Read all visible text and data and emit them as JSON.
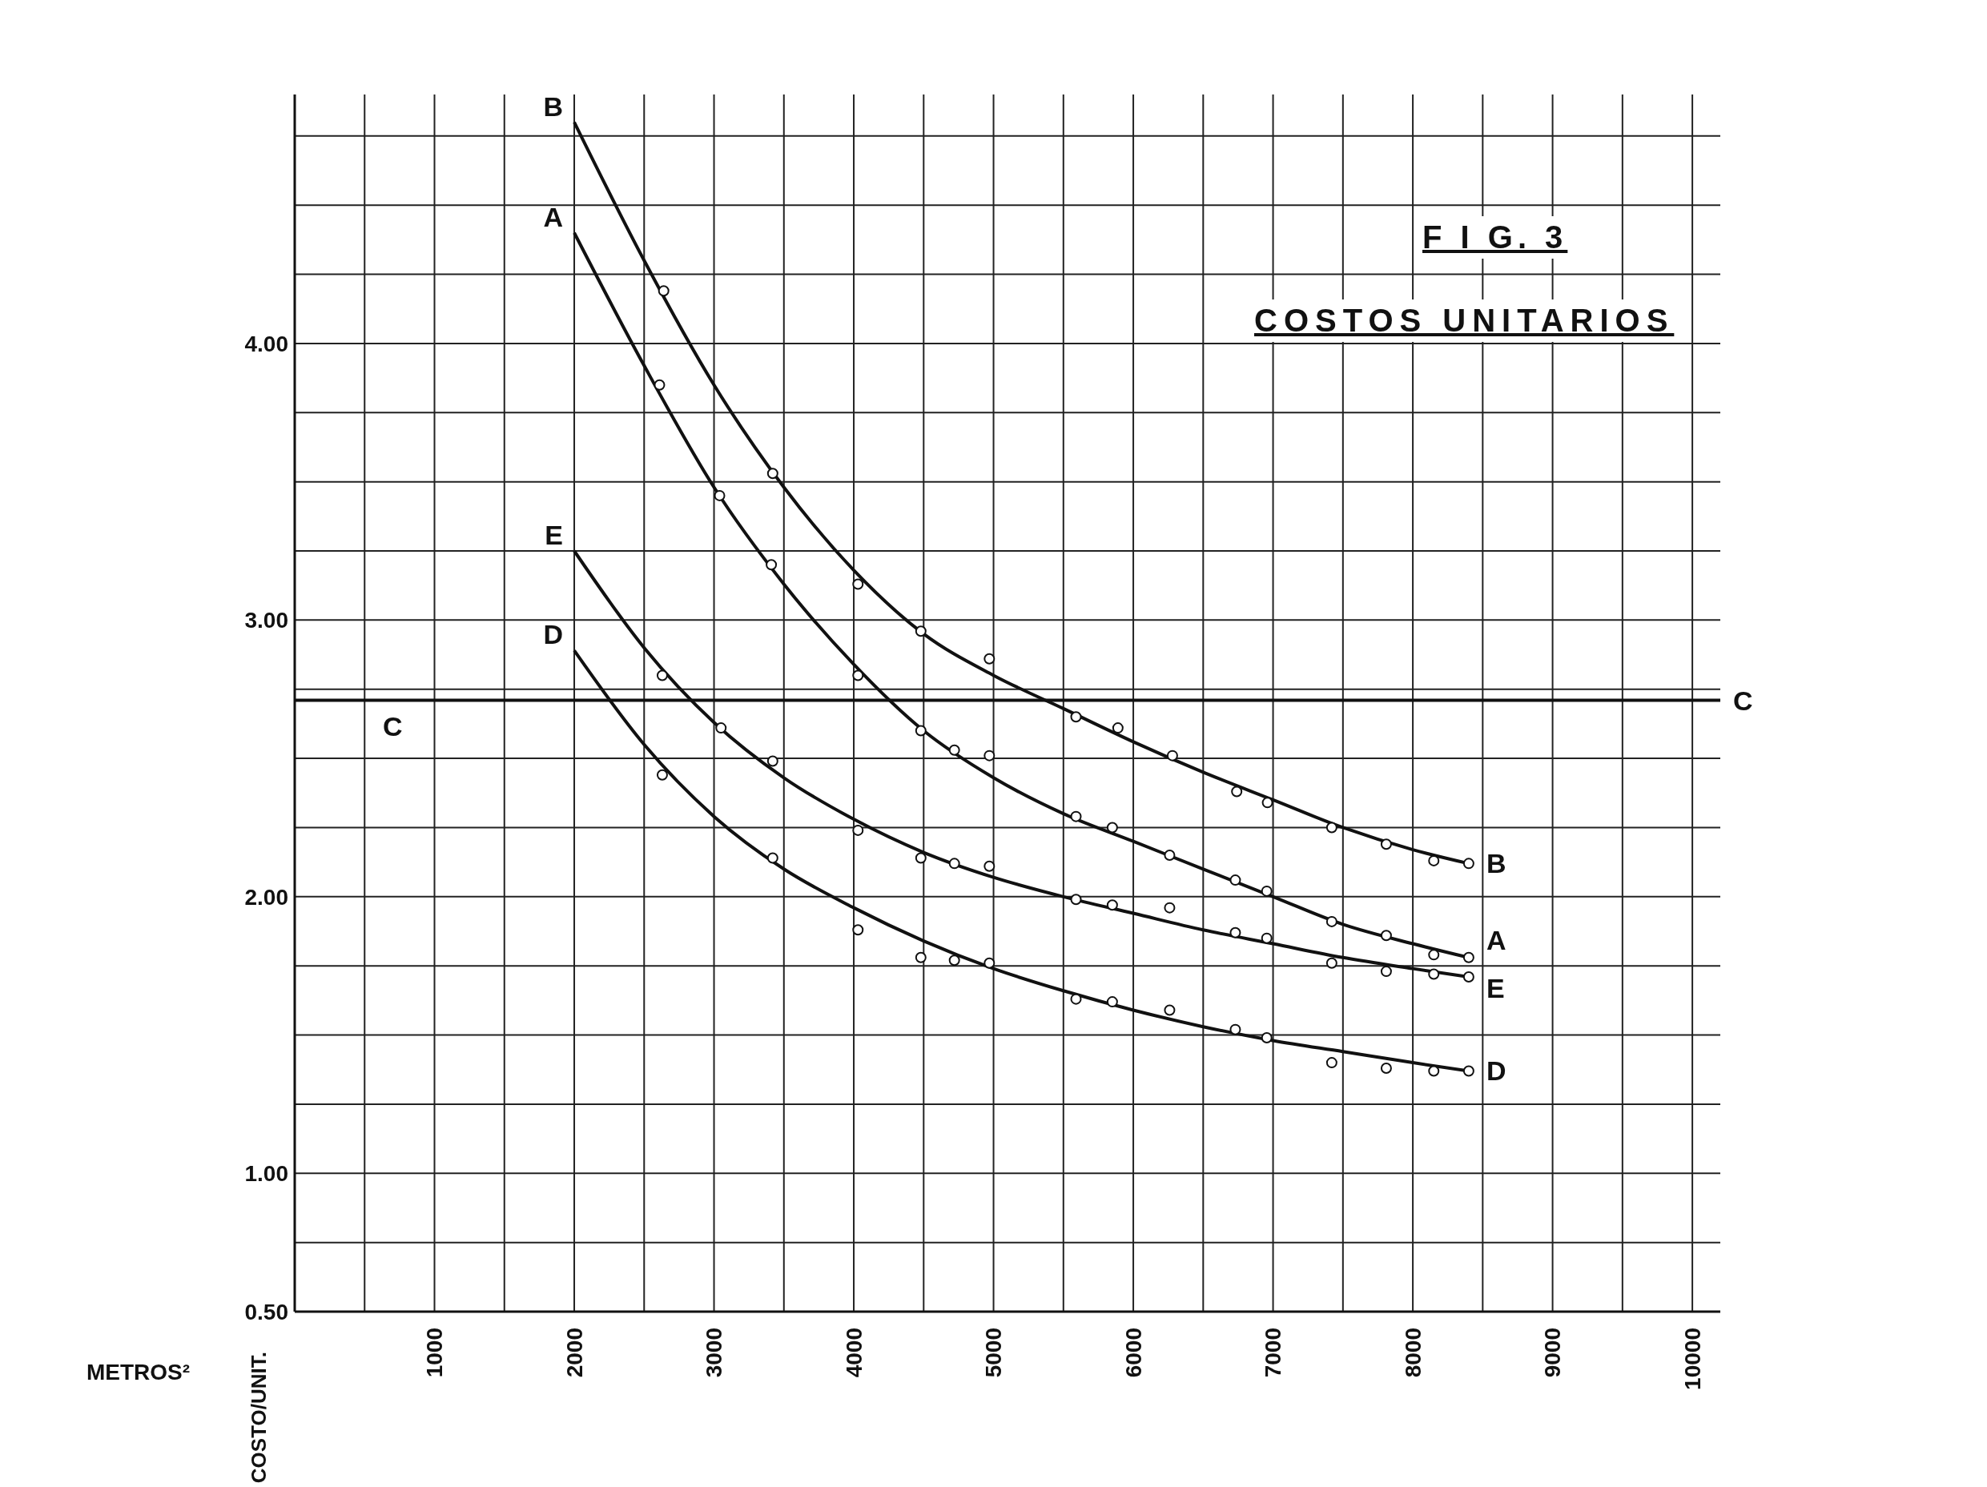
{
  "chart_data": {
    "type": "line",
    "title": "F I G. 3",
    "subtitle": "COSTOS UNITARIOS",
    "xlim": [
      0,
      10200
    ],
    "ylim": [
      0.5,
      4.9
    ],
    "xticks": [
      {
        "value": 0,
        "label": null
      },
      {
        "value": 500,
        "label": null
      },
      1000,
      {
        "value": 1500,
        "label": null
      },
      2000,
      {
        "value": 2500,
        "label": null
      },
      3000,
      {
        "value": 3500,
        "label": null
      },
      4000,
      {
        "value": 4500,
        "label": null
      },
      5000,
      {
        "value": 5500,
        "label": null
      },
      6000,
      {
        "value": 6500,
        "label": null
      },
      7000,
      {
        "value": 7500,
        "label": null
      },
      8000,
      {
        "value": 8500,
        "label": null
      },
      9000,
      {
        "value": 9500,
        "label": null
      },
      10000
    ],
    "yticks": [
      {
        "value": 0.5,
        "label": "0.50"
      },
      {
        "value": 0.75,
        "label": null
      },
      {
        "value": 1,
        "label": "1.00"
      },
      {
        "value": 1.25,
        "label": null
      },
      {
        "value": 1.5,
        "label": null
      },
      {
        "value": 1.75,
        "label": null
      },
      {
        "value": 2,
        "label": "2.00"
      },
      {
        "value": 2.25,
        "label": null
      },
      {
        "value": 2.5,
        "label": null
      },
      {
        "value": 2.75,
        "label": null
      },
      {
        "value": 3,
        "label": "3.00"
      },
      {
        "value": 3.25,
        "label": null
      },
      {
        "value": 3.5,
        "label": null
      },
      {
        "value": 3.75,
        "label": null
      },
      {
        "value": 4,
        "label": "4.00"
      },
      {
        "value": 4.25,
        "label": null
      },
      {
        "value": 4.5,
        "label": null
      },
      {
        "value": 4.75,
        "label": null
      }
    ],
    "grid": true,
    "line_style": "solid",
    "ref_lines": [
      {
        "axis": "y",
        "value": 2.71,
        "label": "C",
        "color": "#111111"
      }
    ],
    "annotations": [
      "C",
      "METROS²",
      "COSTO/UNIT."
    ],
    "series": [
      {
        "name": "B",
        "color": "#111111",
        "marker": "none",
        "x": [
          2000,
          2500,
          3000,
          3500,
          4000,
          4500,
          5000,
          5500,
          6000,
          6500,
          7000,
          7500,
          8000,
          8400
        ],
        "values": [
          4.8,
          4.3,
          3.85,
          3.48,
          3.18,
          2.95,
          2.8,
          2.68,
          2.56,
          2.45,
          2.35,
          2.25,
          2.17,
          2.12
        ]
      },
      {
        "name": "A",
        "color": "#111111",
        "marker": "none",
        "x": [
          2000,
          2500,
          3000,
          3500,
          4000,
          4500,
          5000,
          5500,
          6000,
          6500,
          7000,
          7500,
          8000,
          8400
        ],
        "values": [
          4.4,
          3.92,
          3.48,
          3.13,
          2.84,
          2.6,
          2.43,
          2.3,
          2.2,
          2.1,
          2.0,
          1.9,
          1.83,
          1.78
        ]
      },
      {
        "name": "E",
        "color": "#111111",
        "marker": "none",
        "x": [
          2000,
          2500,
          3000,
          3500,
          4000,
          4500,
          5000,
          5500,
          6000,
          6500,
          7000,
          7500,
          8000,
          8400
        ],
        "values": [
          3.25,
          2.9,
          2.63,
          2.43,
          2.28,
          2.16,
          2.07,
          2.0,
          1.94,
          1.88,
          1.83,
          1.78,
          1.74,
          1.71
        ]
      },
      {
        "name": "D",
        "color": "#111111",
        "marker": "none",
        "x": [
          2000,
          2500,
          3000,
          3500,
          4000,
          4500,
          5000,
          5500,
          6000,
          6500,
          7000,
          7500,
          8000,
          8400
        ],
        "values": [
          2.89,
          2.55,
          2.29,
          2.1,
          1.96,
          1.84,
          1.74,
          1.66,
          1.59,
          1.53,
          1.48,
          1.44,
          1.4,
          1.37
        ]
      },
      {
        "type": "scatter",
        "color": "#111111",
        "marker": "circle",
        "x": [
          2640,
          3420,
          4030,
          4480,
          4970,
          5590,
          5890,
          6280,
          6740,
          6960,
          7420,
          7810,
          8150,
          8400
        ],
        "values": [
          4.19,
          3.53,
          3.13,
          2.96,
          2.86,
          2.65,
          2.61,
          2.51,
          2.38,
          2.34,
          2.25,
          2.19,
          2.13,
          2.12
        ]
      },
      {
        "type": "scatter",
        "color": "#111111",
        "marker": "circle",
        "x": [
          2610,
          3040,
          3410,
          4030,
          4480,
          4720,
          4970,
          5590,
          5850,
          6260,
          6730,
          6955,
          7420,
          7810,
          8150,
          8400
        ],
        "values": [
          3.85,
          3.45,
          3.2,
          2.8,
          2.6,
          2.53,
          2.51,
          2.29,
          2.25,
          2.15,
          2.06,
          2.02,
          1.91,
          1.86,
          1.79,
          1.78
        ]
      },
      {
        "type": "scatter",
        "color": "#111111",
        "marker": "circle",
        "x": [
          2630,
          3050,
          3420,
          4030,
          4480,
          4720,
          4970,
          5590,
          5850,
          6260,
          6730,
          6955,
          7420,
          7810,
          8150,
          8400
        ],
        "values": [
          2.8,
          2.61,
          2.49,
          2.24,
          2.14,
          2.12,
          2.11,
          1.99,
          1.97,
          1.96,
          1.87,
          1.85,
          1.76,
          1.73,
          1.72,
          1.71
        ]
      },
      {
        "type": "scatter",
        "color": "#111111",
        "marker": "circle",
        "x": [
          2630,
          3420,
          4030,
          4480,
          4720,
          4970,
          5590,
          5850,
          6260,
          6730,
          6955,
          7420,
          7810,
          8150,
          8400
        ],
        "values": [
          2.44,
          2.14,
          1.88,
          1.78,
          1.77,
          1.76,
          1.63,
          1.62,
          1.59,
          1.52,
          1.49,
          1.4,
          1.38,
          1.37,
          1.37
        ]
      }
    ]
  }
}
